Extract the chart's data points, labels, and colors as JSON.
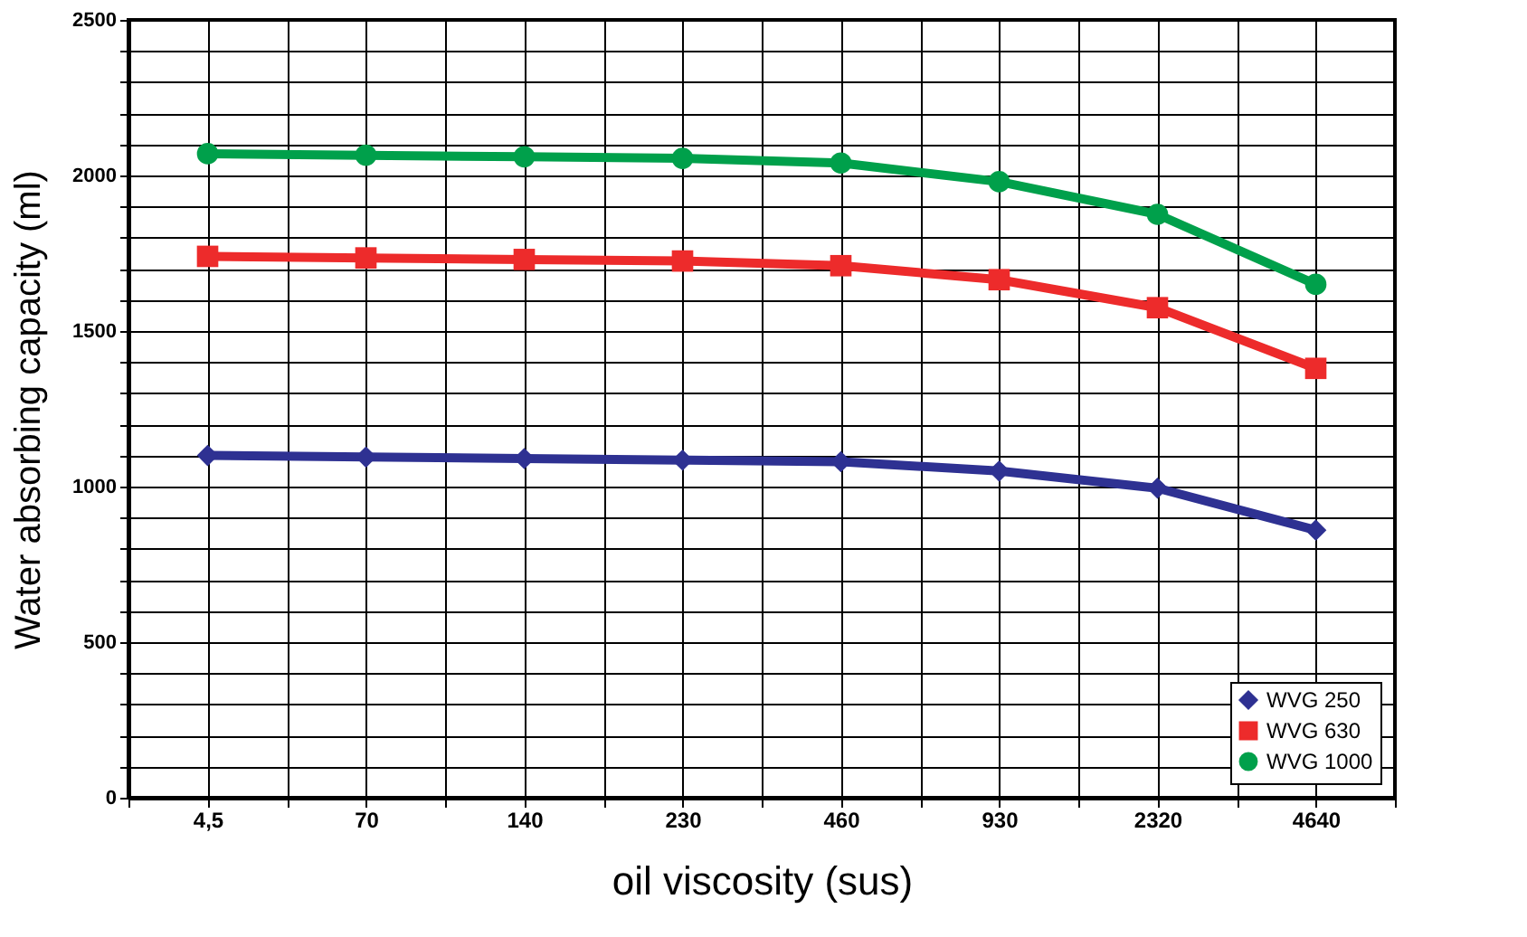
{
  "chart_data": {
    "type": "line",
    "xlabel": "oil viscosity (sus)",
    "ylabel": "Water absorbing capacity (ml)",
    "categories": [
      "4,5",
      "70",
      "140",
      "230",
      "460",
      "930",
      "2320",
      "4640"
    ],
    "series": [
      {
        "name": "WVG 250",
        "color": "#2e3192",
        "marker": "diamond",
        "values": [
          1100,
          1095,
          1090,
          1085,
          1080,
          1050,
          995,
          860
        ]
      },
      {
        "name": "WVG 630",
        "color": "#ed2b2b",
        "marker": "square",
        "values": [
          1740,
          1735,
          1730,
          1725,
          1710,
          1665,
          1575,
          1380
        ]
      },
      {
        "name": "WVG 1000",
        "color": "#00a04b",
        "marker": "circle",
        "values": [
          2070,
          2065,
          2060,
          2055,
          2040,
          1980,
          1875,
          1650
        ]
      }
    ],
    "ylim": [
      0,
      2500
    ],
    "yticks": [
      0,
      500,
      1000,
      1500,
      2000,
      2500
    ],
    "grid": true,
    "legend": "bottom right",
    "line_style": "solid"
  }
}
